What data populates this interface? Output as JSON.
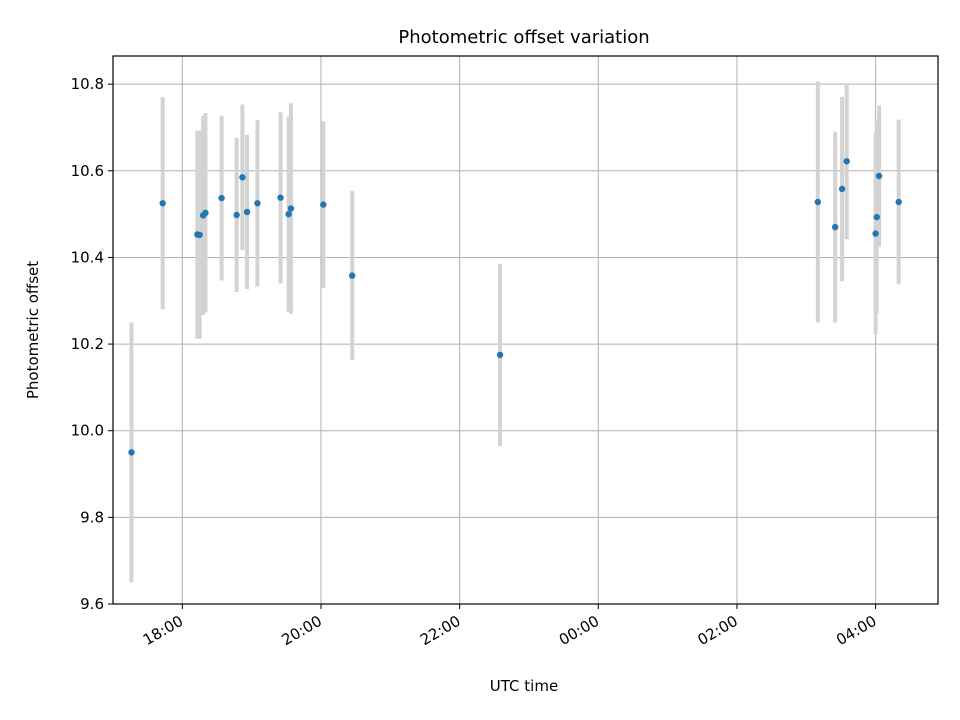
{
  "chart_data": {
    "type": "scatter",
    "title": "Photometric offset variation",
    "xlabel": "UTC time",
    "ylabel": "Photometric offset",
    "x_unit": "hours from 00:00 UTC",
    "xlim": [
      17.0,
      28.9
    ],
    "ylim": [
      9.6,
      10.865
    ],
    "x_ticks": [
      {
        "value": 18,
        "label": "18:00"
      },
      {
        "value": 20,
        "label": "20:00"
      },
      {
        "value": 22,
        "label": "22:00"
      },
      {
        "value": 24,
        "label": "00:00"
      },
      {
        "value": 26,
        "label": "02:00"
      },
      {
        "value": 28,
        "label": "04:00"
      }
    ],
    "y_ticks": [
      {
        "value": 9.6,
        "label": "9.6"
      },
      {
        "value": 9.8,
        "label": "9.8"
      },
      {
        "value": 10.0,
        "label": "10.0"
      },
      {
        "value": 10.2,
        "label": "10.2"
      },
      {
        "value": 10.4,
        "label": "10.4"
      },
      {
        "value": 10.6,
        "label": "10.6"
      },
      {
        "value": 10.8,
        "label": "10.8"
      }
    ],
    "grid": true,
    "point_color": "#1f77b4",
    "errorbar_color": "#d3d3d3",
    "points": [
      {
        "x": "17:16",
        "y": 9.95,
        "err": 0.3
      },
      {
        "x": "17:43",
        "y": 10.525,
        "err": 0.245
      },
      {
        "x": "18:13",
        "y": 10.453,
        "err": 0.24
      },
      {
        "x": "18:15",
        "y": 10.452,
        "err": 0.24
      },
      {
        "x": "18:18",
        "y": 10.497,
        "err": 0.23
      },
      {
        "x": "18:20",
        "y": 10.503,
        "err": 0.23
      },
      {
        "x": "18:34",
        "y": 10.537,
        "err": 0.19
      },
      {
        "x": "18:47",
        "y": 10.498,
        "err": 0.178
      },
      {
        "x": "18:52",
        "y": 10.585,
        "err": 0.168
      },
      {
        "x": "18:56",
        "y": 10.505,
        "err": 0.178
      },
      {
        "x": "19:05",
        "y": 10.525,
        "err": 0.192
      },
      {
        "x": "19:25",
        "y": 10.538,
        "err": 0.198
      },
      {
        "x": "19:32",
        "y": 10.5,
        "err": 0.225
      },
      {
        "x": "19:34",
        "y": 10.513,
        "err": 0.243
      },
      {
        "x": "20:02",
        "y": 10.522,
        "err": 0.192
      },
      {
        "x": "20:27",
        "y": 10.358,
        "err": 0.195
      },
      {
        "x": "22:35",
        "y": 10.175,
        "err": 0.21
      },
      {
        "x": "03:10",
        "y": 10.528,
        "err": 0.278
      },
      {
        "x": "03:25",
        "y": 10.47,
        "err": 0.22
      },
      {
        "x": "03:31",
        "y": 10.558,
        "err": 0.213
      },
      {
        "x": "03:35",
        "y": 10.622,
        "err": 0.18
      },
      {
        "x": "04:00",
        "y": 10.455,
        "err": 0.232
      },
      {
        "x": "04:01",
        "y": 10.493,
        "err": 0.222
      },
      {
        "x": "04:03",
        "y": 10.588,
        "err": 0.163
      },
      {
        "x": "04:20",
        "y": 10.528,
        "err": 0.19
      }
    ]
  }
}
